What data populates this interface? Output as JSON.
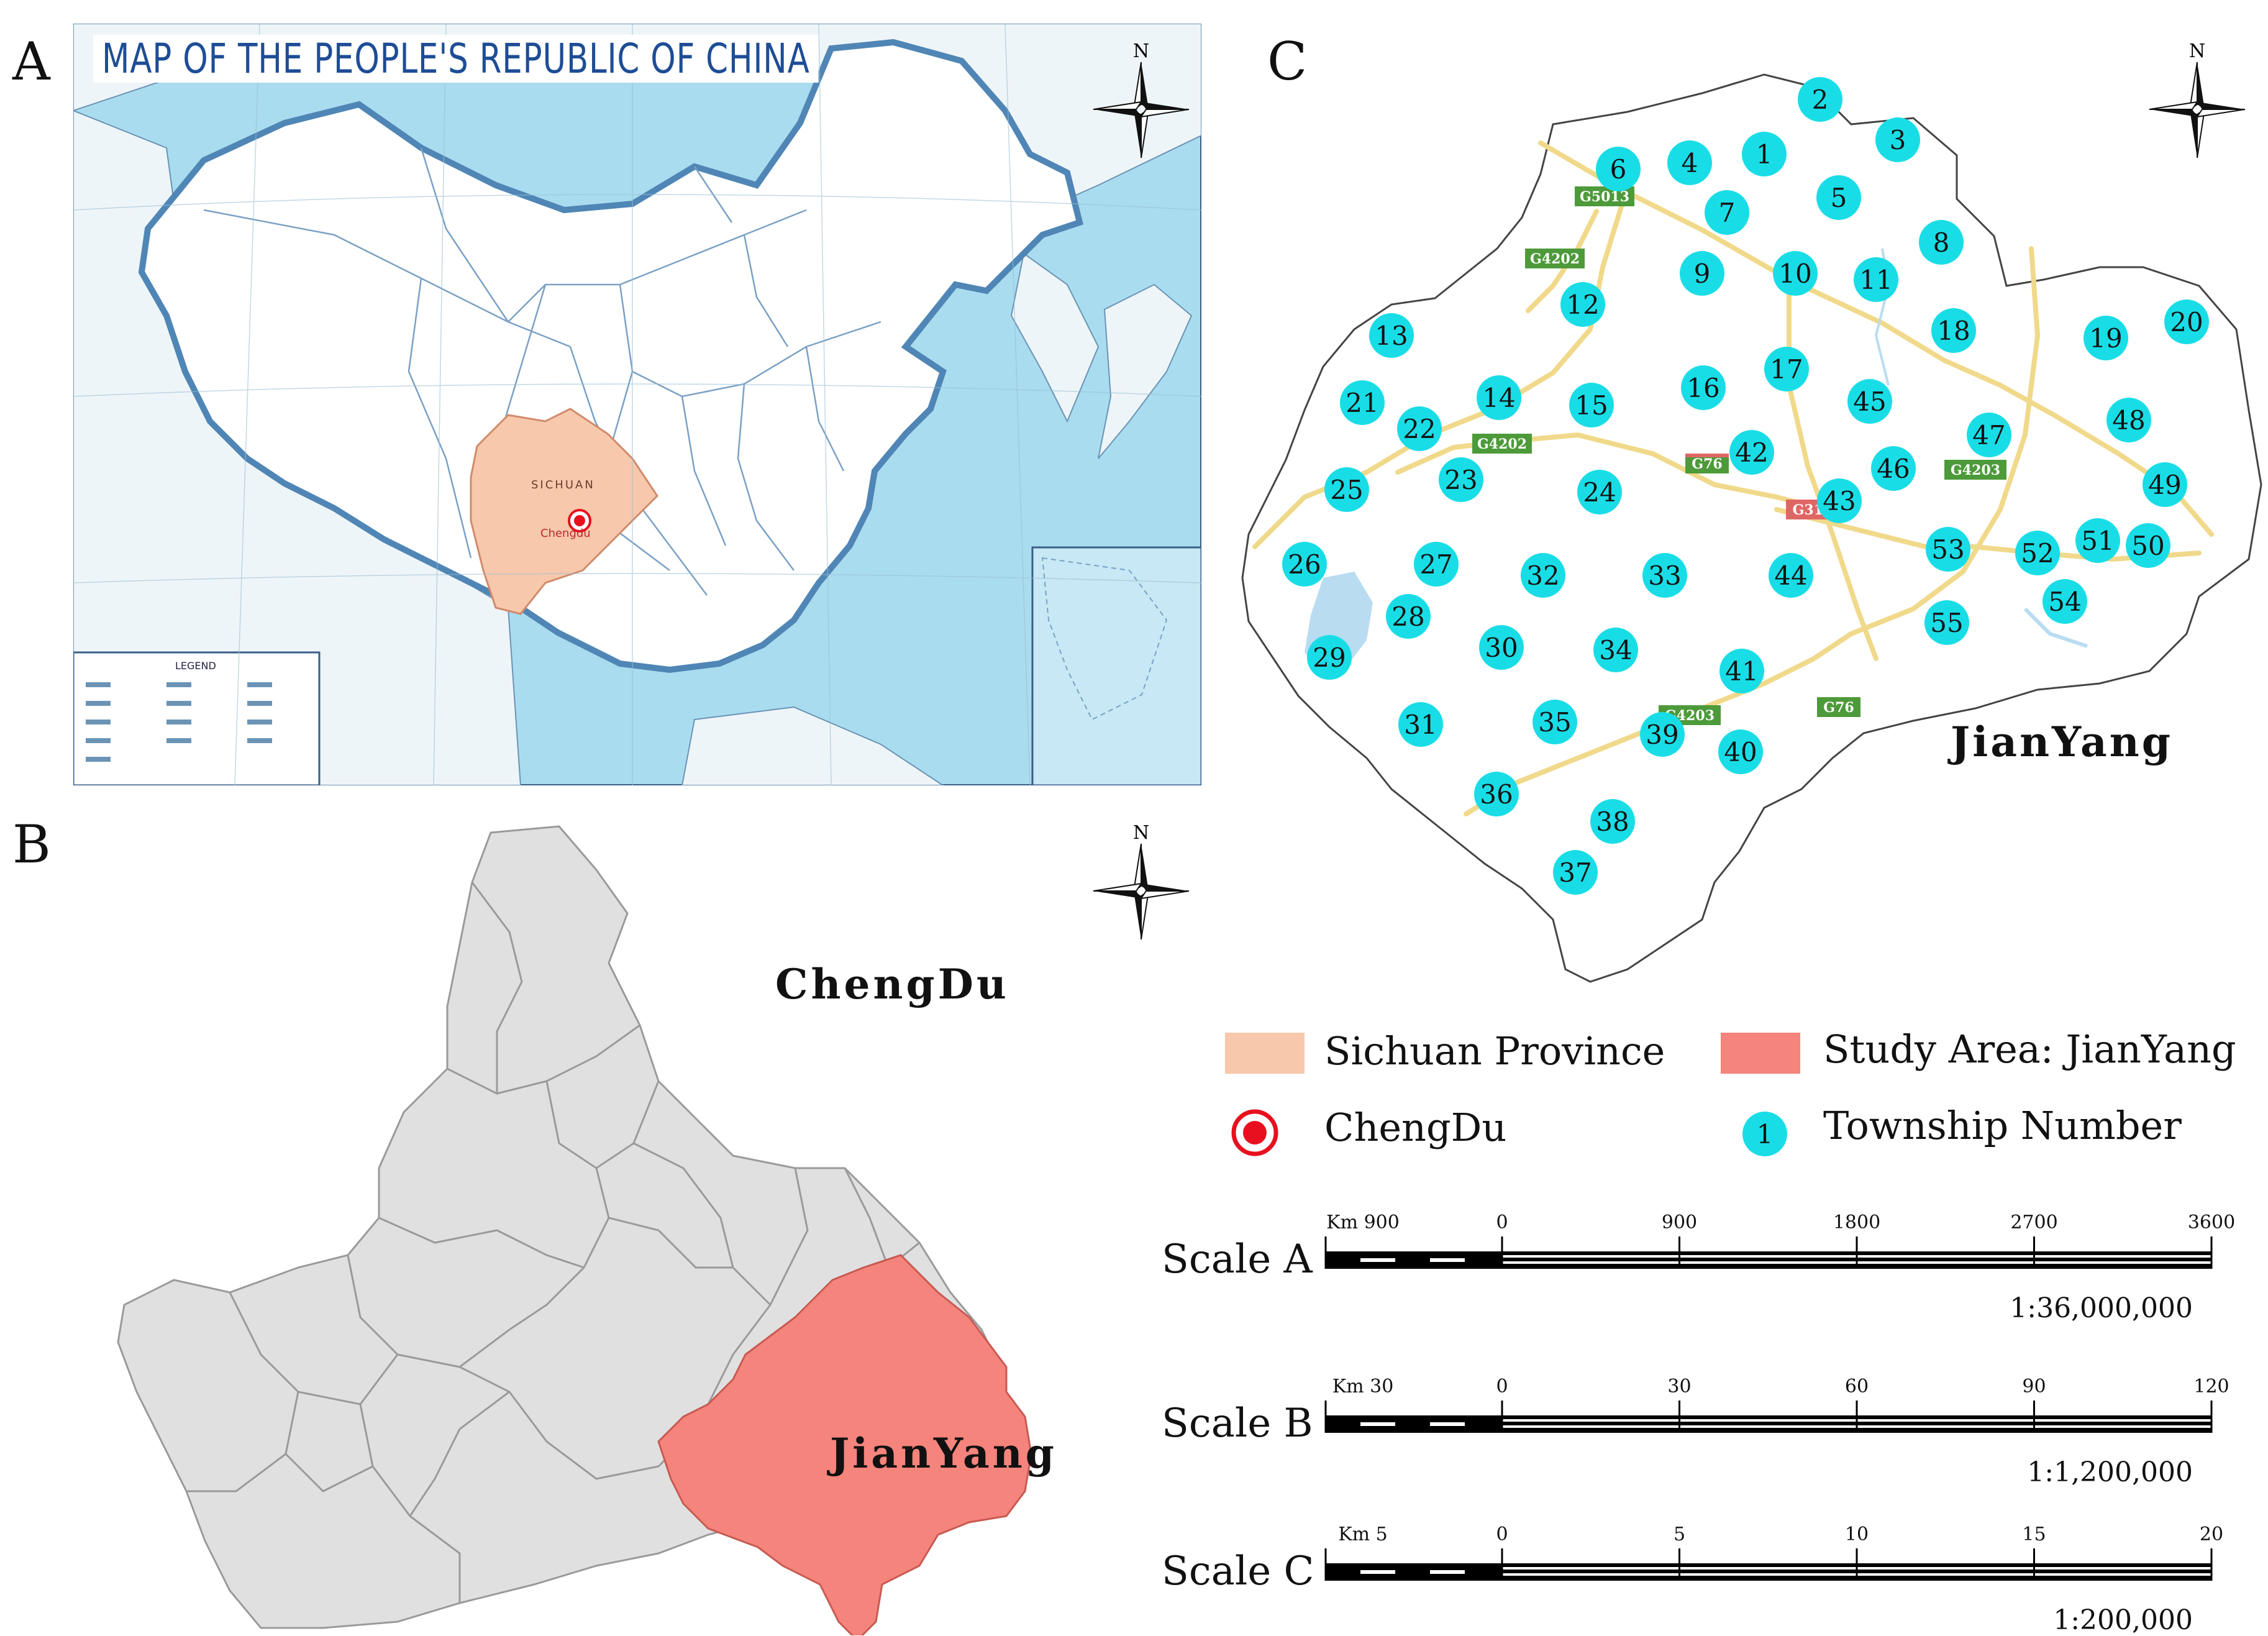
{
  "panels": {
    "a": {
      "letter": "A",
      "title": "MAP OF THE PEOPLE'S REPUBLIC OF CHINA",
      "legend_title": "LEGEND",
      "highlighted_province": "SICHUAN",
      "marked_city": "Chengdu"
    },
    "b": {
      "letter": "B",
      "city": "ChengDu",
      "study_area": "JianYang"
    },
    "c": {
      "letter": "C",
      "county": "JianYang"
    }
  },
  "north_arrow": "N",
  "legend": {
    "sichuan": "Sichuan Province",
    "study_area": "Study Area: JianYang",
    "chengdu": "ChengDu",
    "township": "Township Number",
    "township_symbol": "1"
  },
  "scales": [
    {
      "label": "Scale A",
      "unit_label": "Km 900",
      "ticks": [
        "0",
        "900",
        "1800",
        "2700",
        "3600"
      ],
      "ratio": "1:36,000,000"
    },
    {
      "label": "Scale B",
      "unit_label": "Km 30",
      "ticks": [
        "0",
        "30",
        "60",
        "90",
        "120"
      ],
      "ratio": "1:1,200,000"
    },
    {
      "label": "Scale C",
      "unit_label": "Km 5",
      "ticks": [
        "0",
        "5",
        "10",
        "15",
        "20"
      ],
      "ratio": "1:200,000"
    }
  ],
  "highways": [
    "G5013",
    "G4202",
    "G4202",
    "G76",
    "G319",
    "G4203",
    "G4203",
    "G76"
  ],
  "townships": [
    "1",
    "2",
    "3",
    "4",
    "5",
    "6",
    "7",
    "8",
    "9",
    "10",
    "11",
    "12",
    "13",
    "14",
    "15",
    "16",
    "17",
    "18",
    "19",
    "20",
    "21",
    "22",
    "23",
    "24",
    "25",
    "26",
    "27",
    "28",
    "29",
    "30",
    "31",
    "32",
    "33",
    "34",
    "35",
    "36",
    "37",
    "38",
    "39",
    "40",
    "41",
    "42",
    "43",
    "44",
    "45",
    "46",
    "47",
    "48",
    "49",
    "50",
    "51",
    "52",
    "53",
    "54",
    "55"
  ],
  "colors": {
    "ocean": "#a9dcef",
    "land": "#ffffff",
    "sichuan": "#f7c8ac",
    "study_area": "#f4847c",
    "chengdu_districts": "#e0e0e0",
    "township_marker": "#19dde6",
    "road": "#f0d98a",
    "highway_badge": "#4d9a3a",
    "national_road_badge": "#e06666",
    "water": "#b9dcf1"
  }
}
